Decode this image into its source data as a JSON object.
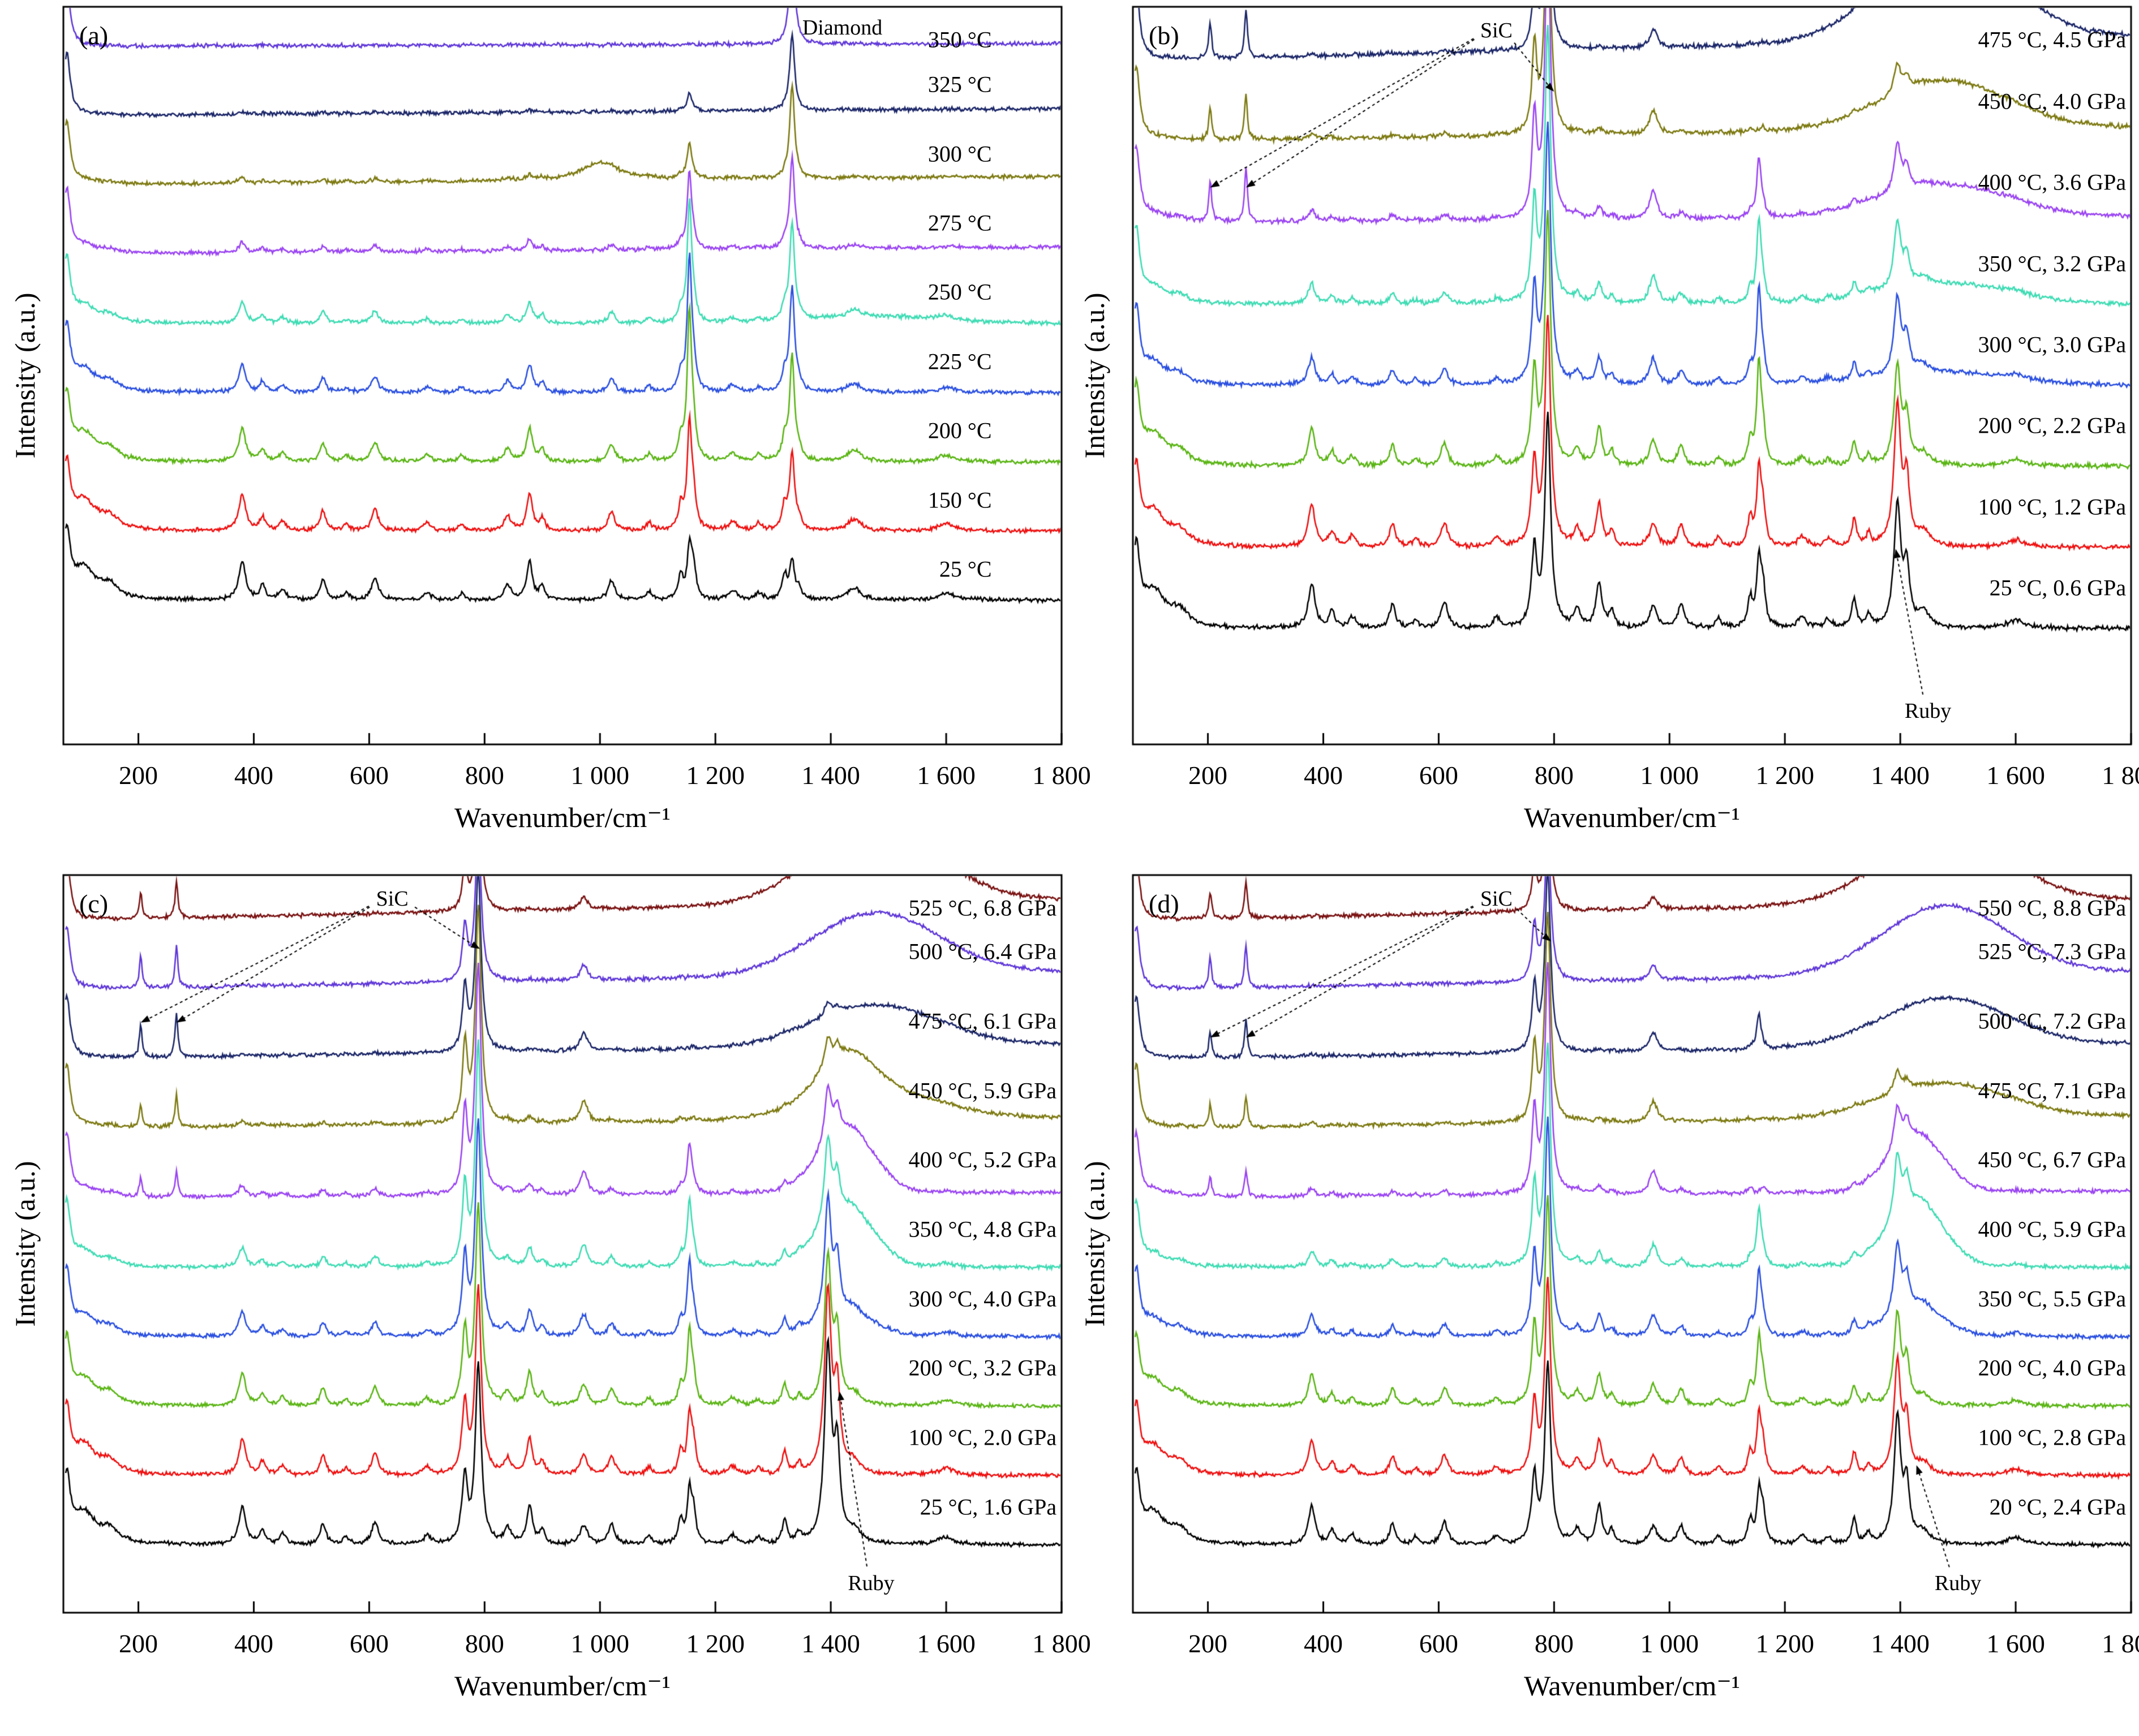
{
  "chart_data": {
    "type": "line",
    "figure_kind": "raman-spectra-2x2",
    "xlabel": "Wavenumber/cm⁻¹",
    "ylabel": "Intensity (a.u.)",
    "x_range": [
      70,
      1800
    ],
    "x_tick_values": [
      200,
      400,
      600,
      800,
      1000,
      1200,
      1400,
      1600,
      1800
    ],
    "x_tick_labels": [
      "200",
      "400",
      "600",
      "800",
      "1 000",
      "1 200",
      "1 400",
      "1 600",
      "1 800"
    ],
    "grid": false,
    "peak_library": {
      "edge": [
        [
          76,
          1.0,
          7
        ]
      ],
      "hyd": [
        [
          105,
          0.45,
          25
        ],
        [
          150,
          0.18,
          18
        ],
        [
          380,
          0.55,
          7
        ],
        [
          415,
          0.2,
          6
        ],
        [
          450,
          0.14,
          7
        ],
        [
          520,
          0.3,
          6
        ],
        [
          560,
          0.1,
          6
        ],
        [
          610,
          0.32,
          7
        ],
        [
          700,
          0.12,
          7
        ],
        [
          760,
          0.1,
          6
        ],
        [
          840,
          0.22,
          7
        ],
        [
          878,
          0.55,
          6
        ],
        [
          900,
          0.2,
          5
        ],
        [
          1020,
          0.28,
          7
        ],
        [
          1085,
          0.12,
          6
        ],
        [
          1140,
          0.35,
          5
        ],
        [
          1162,
          0.45,
          5
        ],
        [
          1230,
          0.13,
          9
        ],
        [
          1275,
          0.1,
          7
        ],
        [
          1320,
          0.35,
          5
        ],
        [
          1345,
          0.15,
          5
        ],
        [
          1440,
          0.18,
          14
        ],
        [
          1600,
          0.1,
          18
        ]
      ],
      "sic": [
        [
          766,
          0.35,
          5
        ],
        [
          789,
          1.0,
          6
        ],
        [
          972,
          0.1,
          8
        ]
      ],
      "folded": [
        [
          204,
          0.55,
          3
        ],
        [
          266,
          0.75,
          3
        ]
      ],
      "ruby": [
        [
          1395,
          1.0,
          7
        ],
        [
          1411,
          0.45,
          6
        ]
      ],
      "diamond": [
        [
          1333,
          1.0,
          5
        ]
      ],
      "s1155": [
        [
          1155,
          1.0,
          4.5
        ]
      ],
      "bump1000": [
        [
          1000,
          1.0,
          40
        ]
      ],
      "broad": {
        "center": 1478,
        "sigma": 110
      },
      "hump": {
        "center": 1428,
        "sigma": 48
      }
    },
    "panels": [
      {
        "tag": "(a)",
        "bottom_pad": 255,
        "top_pad": 70,
        "label_anchor": 0.93,
        "label_lift": 0.45,
        "annotations": [
          {
            "text": "Diamond",
            "x": 1420,
            "yf": 0.028,
            "targets": []
          }
        ],
        "series": [
          {
            "label": "25 °C",
            "color": "#000000",
            "comp": {
              "hyd": 1.0,
              "s1155": 0.7,
              "diamond": 0.55
            }
          },
          {
            "label": "150 °C",
            "color": "#ef1010",
            "comp": {
              "hyd": 0.95,
              "s1155": 1.5,
              "diamond": 1.1
            }
          },
          {
            "label": "200 °C",
            "color": "#5ab514",
            "comp": {
              "hyd": 0.88,
              "s1155": 2.1,
              "diamond": 1.5
            }
          },
          {
            "label": "225 °C",
            "color": "#2b50e0",
            "comp": {
              "hyd": 0.72,
              "s1155": 1.9,
              "diamond": 1.5
            }
          },
          {
            "label": "250 °C",
            "color": "#3fdcb4",
            "comp": {
              "hyd": 0.55,
              "s1155": 1.7,
              "diamond": 1.4,
              "broad": 0.1
            }
          },
          {
            "label": "275 °C",
            "color": "#9b45f2",
            "comp": {
              "hyd": 0.28,
              "s1155": 1.1,
              "diamond": 1.3,
              "tilt": 0.1
            }
          },
          {
            "label": "300 °C",
            "color": "#7d7a12",
            "comp": {
              "hyd": 0.14,
              "s1155": 0.5,
              "diamond": 1.35,
              "bump1000": 0.25,
              "tilt": 0.12
            }
          },
          {
            "label": "325 °C",
            "color": "#1b2668",
            "comp": {
              "hyd": 0.06,
              "s1155": 0.25,
              "diamond": 1.1,
              "tilt": 0.1
            }
          },
          {
            "label": "350 °C",
            "color": "#6038d8",
            "comp": {
              "hyd": 0.02,
              "diamond": 1.7,
              "tilt": 0.04
            }
          }
        ]
      },
      {
        "tag": "(b)",
        "bottom_pad": 205,
        "top_pad": 95,
        "label_anchor": 0.995,
        "label_lift": 0.5,
        "annotations": [
          {
            "text": "SiC",
            "x": 700,
            "yf": 0.032,
            "targets": [
              [
                204,
                0.245
              ],
              [
                266,
                0.245
              ],
              [
                800,
                0.115
              ]
            ]
          },
          {
            "text": "Ruby",
            "x": 1448,
            "yf": 0.955,
            "targets": [
              [
                1392,
                0.735
              ]
            ]
          }
        ],
        "series": [
          {
            "label": "25 °C, 0.6 GPa",
            "color": "#000000",
            "comp": {
              "hyd": 1.0,
              "sic": 2.6,
              "ruby": 1.5,
              "s1155": 0.8
            }
          },
          {
            "label": "100 °C, 1.2 GPa",
            "color": "#ef1010",
            "comp": {
              "hyd": 0.95,
              "sic": 2.8,
              "ruby": 1.7,
              "s1155": 0.9
            }
          },
          {
            "label": "200 °C, 2.2 GPa",
            "color": "#5ab514",
            "comp": {
              "hyd": 0.85,
              "sic": 3.1,
              "ruby": 1.2,
              "s1155": 1.2
            }
          },
          {
            "label": "300 °C, 3.0 GPa",
            "color": "#2b50e0",
            "comp": {
              "hyd": 0.6,
              "sic": 3.2,
              "ruby": 0.95,
              "s1155": 1.1,
              "broad": 0.15
            }
          },
          {
            "label": "350 °C, 3.2 GPa",
            "color": "#3fdcb4",
            "comp": {
              "hyd": 0.45,
              "sic": 3.4,
              "ruby": 0.8,
              "s1155": 1.0,
              "broad": 0.25
            }
          },
          {
            "label": "400 °C, 3.6 GPa",
            "color": "#9b45f2",
            "comp": {
              "hyd": 0.25,
              "sic": 3.5,
              "folded": 0.9,
              "ruby": 0.6,
              "s1155": 0.7,
              "broad": 0.4,
              "tilt": 0.08
            }
          },
          {
            "label": "450 °C, 4.0 GPa",
            "color": "#7d7a12",
            "comp": {
              "hyd": 0.12,
              "sic": 3.0,
              "folded": 0.75,
              "ruby": 0.35,
              "broad": 0.6,
              "tilt": 0.18
            }
          },
          {
            "label": "475 °C, 4.5 GPa",
            "color": "#1b2668",
            "comp": {
              "hyd": 0.05,
              "sic": 2.2,
              "folded": 0.8,
              "broad": 1.15,
              "tilt": 0.3
            }
          }
        ]
      },
      {
        "tag": "(c)",
        "bottom_pad": 120,
        "top_pad": 80,
        "label_anchor": 0.995,
        "label_lift": 0.55,
        "annotations": [
          {
            "text": "SiC",
            "x": 640,
            "yf": 0.032,
            "targets": [
              [
                204,
                0.2
              ],
              [
                266,
                0.2
              ],
              [
                792,
                0.1
              ]
            ]
          },
          {
            "text": "Ruby",
            "x": 1470,
            "yf": 0.96,
            "targets": [
              [
                1415,
                0.7
              ]
            ]
          }
        ],
        "series": [
          {
            "label": "25 °C, 1.6 GPa",
            "color": "#000000",
            "comp": {
              "hyd": 1.0,
              "sic": 2.6,
              "ruby": 2.8,
              "s1155": 0.7
            }
          },
          {
            "label": "100 °C, 2.0 GPa",
            "color": "#ef1010",
            "comp": {
              "hyd": 0.95,
              "sic": 2.7,
              "ruby": 2.6,
              "s1155": 0.8
            }
          },
          {
            "label": "200 °C, 3.2 GPa",
            "color": "#5ab514",
            "comp": {
              "hyd": 0.85,
              "sic": 2.9,
              "ruby": 2.1,
              "s1155": 1.0
            }
          },
          {
            "label": "300 °C, 4.0 GPa",
            "color": "#2b50e0",
            "comp": {
              "hyd": 0.65,
              "sic": 3.1,
              "ruby": 1.7,
              "s1155": 1.0,
              "hump": 0.3
            }
          },
          {
            "label": "350 °C, 4.8 GPa",
            "color": "#3fdcb4",
            "comp": {
              "hyd": 0.5,
              "sic": 3.2,
              "ruby": 1.2,
              "s1155": 0.9,
              "hump": 0.8
            }
          },
          {
            "label": "400 °C, 5.2 GPa",
            "color": "#9b45f2",
            "comp": {
              "hyd": 0.3,
              "sic": 3.3,
              "folded": 0.5,
              "ruby": 0.8,
              "s1155": 0.7,
              "hump": 0.9,
              "tilt": 0.08
            }
          },
          {
            "label": "450 °C, 5.9 GPa",
            "color": "#7d7a12",
            "comp": {
              "hyd": 0.15,
              "sic": 3.1,
              "folded": 0.6,
              "ruby": 0.4,
              "hump": 0.6,
              "broad": 0.4,
              "tilt": 0.16
            }
          },
          {
            "label": "475 °C, 6.1 GPa",
            "color": "#1b2668",
            "comp": {
              "hyd": 0.07,
              "sic": 2.6,
              "folded": 0.85,
              "ruby": 0.2,
              "broad": 0.6,
              "tilt": 0.22
            }
          },
          {
            "label": "500 °C, 6.4 GPa",
            "color": "#6038d8",
            "comp": {
              "hyd": 0.04,
              "sic": 2.2,
              "folded": 0.8,
              "broad": 0.9,
              "tilt": 0.26
            }
          },
          {
            "label": "525 °C, 6.8 GPa",
            "color": "#7a1212",
            "comp": {
              "hyd": 0.02,
              "sic": 1.8,
              "folded": 0.7,
              "broad": 1.05,
              "tilt": 0.3
            }
          }
        ]
      },
      {
        "tag": "(d)",
        "bottom_pad": 120,
        "top_pad": 80,
        "label_anchor": 0.995,
        "label_lift": 0.55,
        "annotations": [
          {
            "text": "SiC",
            "x": 700,
            "yf": 0.032,
            "targets": [
              [
                204,
                0.22
              ],
              [
                266,
                0.22
              ],
              [
                795,
                0.09
              ]
            ]
          },
          {
            "text": "Ruby",
            "x": 1500,
            "yf": 0.96,
            "targets": [
              [
                1428,
                0.8
              ]
            ]
          }
        ],
        "series": [
          {
            "label": "20 °C, 2.4 GPa",
            "color": "#000000",
            "comp": {
              "hyd": 1.0,
              "sic": 2.6,
              "ruby": 1.8,
              "s1155": 0.7
            }
          },
          {
            "label": "100 °C, 2.8 GPa",
            "color": "#ef1010",
            "comp": {
              "hyd": 0.9,
              "sic": 2.8,
              "ruby": 1.6,
              "s1155": 0.8
            }
          },
          {
            "label": "200 °C, 4.0 GPa",
            "color": "#5ab514",
            "comp": {
              "hyd": 0.8,
              "sic": 3.0,
              "ruby": 1.3,
              "s1155": 0.9
            }
          },
          {
            "label": "350 °C, 5.5 GPa",
            "color": "#2b50e0",
            "comp": {
              "hyd": 0.55,
              "sic": 3.1,
              "ruby": 1.0,
              "s1155": 0.9,
              "hump": 0.4
            }
          },
          {
            "label": "400 °C, 5.9 GPa",
            "color": "#3fdcb4",
            "comp": {
              "hyd": 0.4,
              "sic": 3.2,
              "ruby": 0.9,
              "s1155": 0.8,
              "hump": 0.9
            }
          },
          {
            "label": "450 °C, 6.7 GPa",
            "color": "#9b45f2",
            "comp": {
              "hyd": 0.22,
              "sic": 3.3,
              "folded": 0.5,
              "ruby": 0.6,
              "hump": 0.8,
              "tilt": 0.1
            }
          },
          {
            "label": "475 °C, 7.1 GPa",
            "color": "#7d7a12",
            "comp": {
              "hyd": 0.1,
              "sic": 3.0,
              "folded": 0.6,
              "ruby": 0.3,
              "broad": 0.5,
              "tilt": 0.18
            }
          },
          {
            "label": "500 °C, 7.2 GPa",
            "color": "#1b2668",
            "comp": {
              "hyd": 0.05,
              "sic": 2.6,
              "folded": 0.7,
              "s1155": 0.5,
              "broad": 0.7,
              "tilt": 0.22
            }
          },
          {
            "label": "525 °C, 7.3 GPa",
            "color": "#6038d8",
            "comp": {
              "hyd": 0.03,
              "sic": 2.2,
              "folded": 0.8,
              "broad": 1.0,
              "tilt": 0.26
            }
          },
          {
            "label": "550 °C, 8.8 GPa",
            "color": "#7a1212",
            "comp": {
              "hyd": 0.02,
              "sic": 1.8,
              "folded": 0.7,
              "broad": 1.0,
              "tilt": 0.3
            }
          }
        ]
      }
    ]
  }
}
